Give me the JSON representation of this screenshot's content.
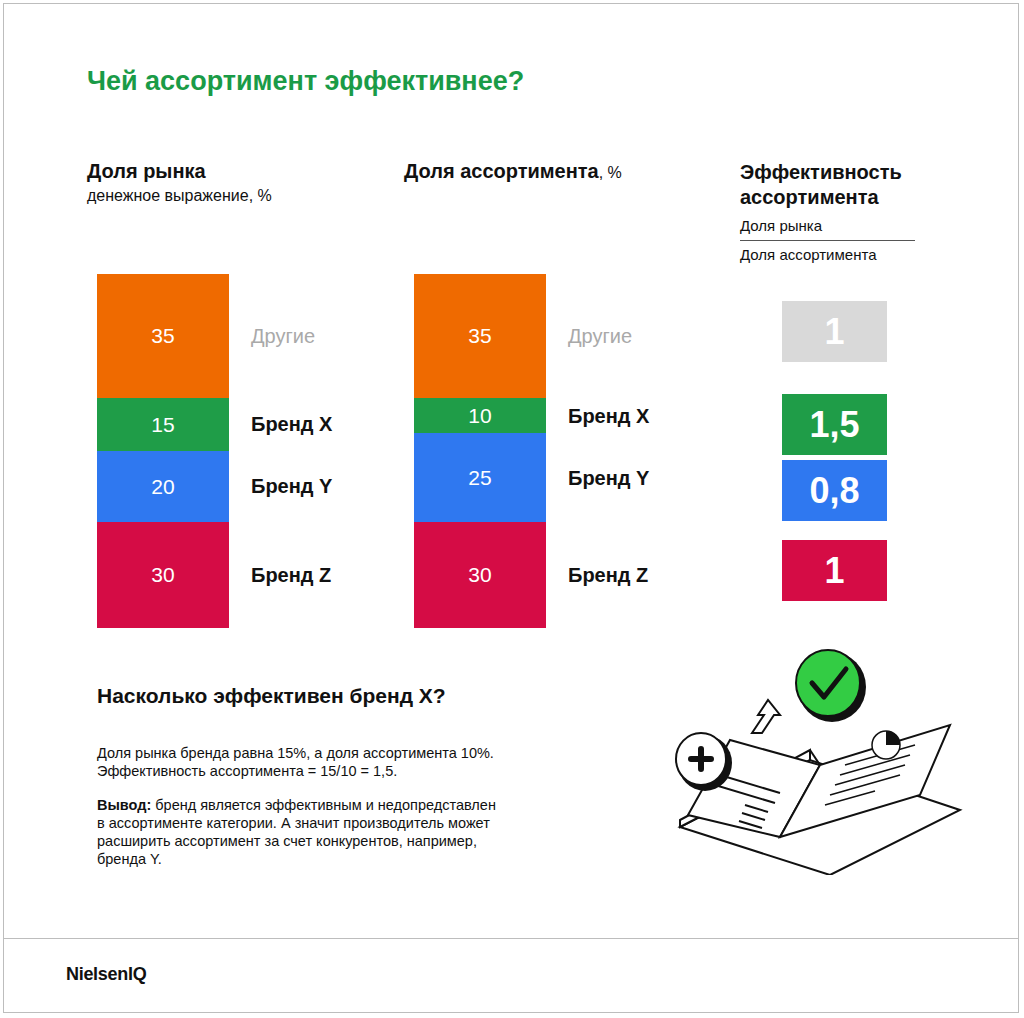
{
  "title": "Чей ассортимент эффективнее?",
  "chart_data": [
    {
      "type": "bar",
      "stacked": true,
      "title": "Доля рынка",
      "subtitle": "денежное выражение, %",
      "categories": [
        null
      ],
      "series": [
        {
          "name": "Бренд Z",
          "color": "#d50c45",
          "values": [
            30
          ]
        },
        {
          "name": "Бренд Y",
          "color": "#2f78f0",
          "values": [
            20
          ]
        },
        {
          "name": "Бренд X",
          "color": "#1f9d48",
          "values": [
            15
          ]
        },
        {
          "name": "Другие",
          "color": "#ef6a00",
          "values": [
            35
          ]
        }
      ],
      "ylim": [
        0,
        100
      ],
      "data_labels": true,
      "tick_labels": false
    },
    {
      "type": "bar",
      "stacked": true,
      "title": "Доля ассортимента",
      "subtitle": ", %",
      "categories": [
        null
      ],
      "series": [
        {
          "name": "Бренд Z",
          "color": "#d50c45",
          "values": [
            30
          ]
        },
        {
          "name": "Бренд Y",
          "color": "#2f78f0",
          "values": [
            25
          ]
        },
        {
          "name": "Бренд X",
          "color": "#1f9d48",
          "values": [
            10
          ]
        },
        {
          "name": "Другие",
          "color": "#ef6a00",
          "values": [
            35
          ]
        }
      ],
      "ylim": [
        0,
        100
      ],
      "data_labels": true,
      "tick_labels": false
    }
  ],
  "efficiency": {
    "title": "Эффективность ассортимента",
    "numerator": "Доля рынка",
    "denominator": "Доля ассортимента",
    "values": [
      1,
      1.5,
      0.8,
      1
    ],
    "value_labels": [
      "1",
      "1,5",
      "0,8",
      "1"
    ],
    "colors": [
      "#d9d9d9",
      "#1f9d48",
      "#2f78f0",
      "#d50c45"
    ]
  },
  "note": {
    "title": "Насколько эффективен бренд X?",
    "paragraphs": [
      {
        "lines": [
          "Доля рынка бренда равна 15%, а доля ассортимента 10%.",
          "Эффективность ассортимента = 15/10 = 1,5."
        ]
      },
      {
        "lead": "Вывод:",
        "lines": [
          "бренд является эффективным и недопредставлен",
          "в ассортименте категории. А значит производитель может",
          "расширить ассортимент за счет конкурентов, например,",
          "бренда Y."
        ]
      }
    ]
  },
  "footer": "NielsenIQ"
}
